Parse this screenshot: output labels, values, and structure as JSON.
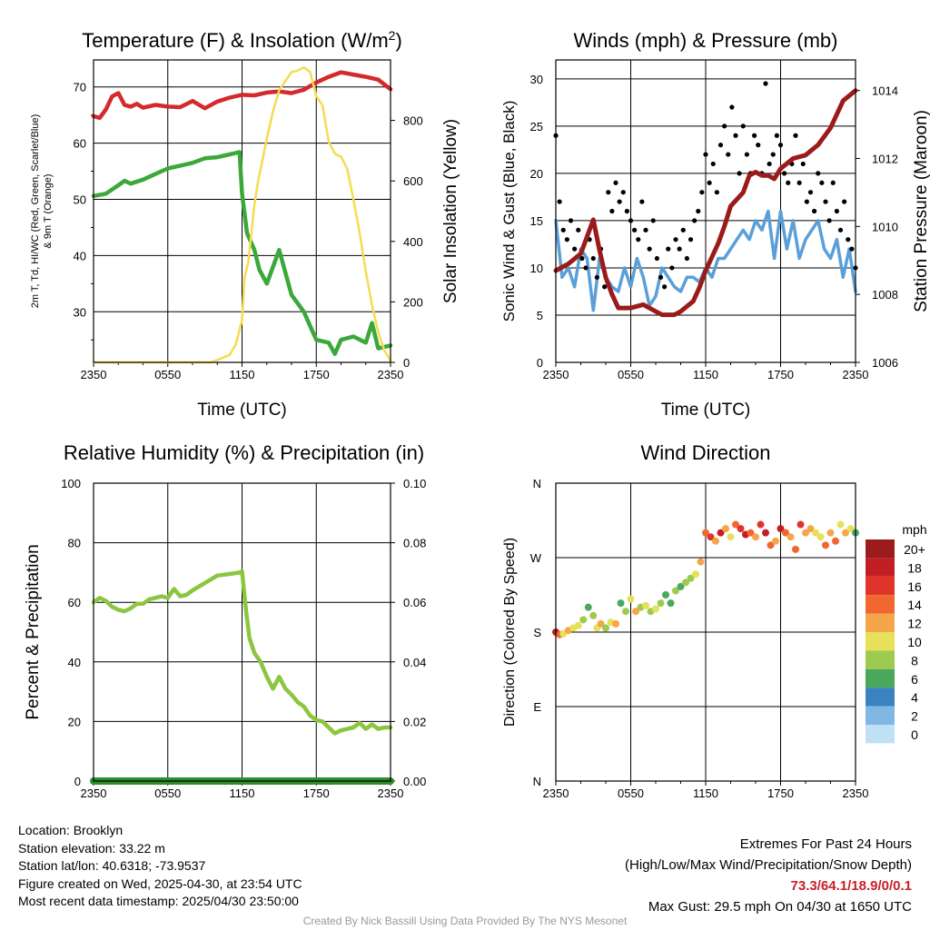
{
  "footer": {
    "location": "Location: Brooklyn",
    "elevation": "Station elevation: 33.22 m",
    "latlon": "Station lat/lon: 40.6318; -73.9537",
    "created": "Figure created on Wed, 2025-04-30, at 23:54 UTC",
    "recent": "Most recent data timestamp: 2025/04/30 23:50:00",
    "extremes_title": "Extremes For Past 24 Hours",
    "extremes_sub": "(High/Low/Max Wind/Precipitation/Snow Depth)",
    "extremes_values": "73.3/64.1/18.9/0/0.1",
    "max_gust": "Max Gust: 29.5 mph On 04/30 at 1650 UTC",
    "credit": "Created By Nick Bassill Using Data Provided By The NYS Mesonet"
  },
  "colors": {
    "temperature": "#d42a2c",
    "dewpoint": "#3aa83a",
    "insolation": "#f5dc50",
    "wind": "#5a9fd8",
    "gust": "#000000",
    "pressure": "#9b1b1b",
    "humidity": "#8cc63f",
    "precip": "#2e8b2e"
  },
  "chart_data": [
    {
      "id": "temp",
      "type": "line",
      "title": "Temperature (F) & Insolation (W/m2)",
      "title_main": "Temperature (F) & Insolation (W/m",
      "title_sup": "2",
      "title_end": ")",
      "xlabel": "Time (UTC)",
      "ylabel_line1": "2m T, Td, HI/WC (Red, Green, Scarlet/Blue)",
      "ylabel_line2": "& 9m T (Orange)",
      "y2label": "Solar Insolation (Yellow)",
      "x_ticks": [
        "2350",
        "0550",
        "1150",
        "1750",
        "2350"
      ],
      "xlim": [
        0,
        24
      ],
      "ylim": [
        21,
        74.8
      ],
      "y_ticks": [
        30,
        40,
        50,
        60,
        70
      ],
      "y2lim": [
        0,
        1000
      ],
      "y2_ticks": [
        0,
        200,
        400,
        600,
        800
      ],
      "series": [
        {
          "name": "2m T",
          "axis": "left",
          "color": "#d42a2c",
          "x": [
            0,
            0.5,
            1,
            1.5,
            2,
            2.5,
            3,
            3.5,
            4,
            5,
            6,
            7,
            8,
            9,
            10,
            11,
            12,
            13,
            14,
            15,
            16,
            17,
            18,
            19,
            20,
            21,
            22,
            23,
            24
          ],
          "y": [
            64.8,
            64.5,
            66.0,
            68.3,
            68.9,
            66.8,
            66.5,
            67.0,
            66.3,
            66.8,
            66.5,
            66.4,
            67.5,
            66.2,
            67.4,
            68.1,
            68.6,
            68.5,
            69.0,
            69.2,
            68.9,
            69.5,
            70.8,
            71.8,
            72.6,
            72.2,
            71.8,
            71.3,
            69.6
          ]
        },
        {
          "name": "2m Td",
          "axis": "left",
          "color": "#3aa83a",
          "x": [
            0,
            1,
            2,
            2.5,
            3,
            4,
            5,
            6,
            7,
            8,
            9,
            10,
            11,
            11.8,
            12,
            12.4,
            13,
            13.4,
            14,
            14.5,
            15,
            15.5,
            16,
            16.5,
            17,
            17.5,
            18,
            19,
            19.5,
            20,
            21,
            22,
            22.5,
            23,
            24
          ],
          "y": [
            50.6,
            51.0,
            52.5,
            53.3,
            52.8,
            53.5,
            54.5,
            55.5,
            56.0,
            56.5,
            57.3,
            57.5,
            58.0,
            58.4,
            51.0,
            44.0,
            41.0,
            37.5,
            35.0,
            38.0,
            41.0,
            37.0,
            33.0,
            31.5,
            30.0,
            27.5,
            25.0,
            24.5,
            22.5,
            25.0,
            25.6,
            24.5,
            28.0,
            23.5,
            24.0
          ]
        },
        {
          "name": "Solar Insolation",
          "axis": "right",
          "color": "#f5dc50",
          "x": [
            0,
            9.5,
            10,
            11,
            11.5,
            12,
            12.2,
            12.5,
            13,
            13.3,
            14,
            14.5,
            15,
            15.5,
            16,
            16.5,
            17,
            17.5,
            18,
            18.5,
            19,
            19.5,
            20,
            20.5,
            21,
            21.5,
            22,
            22.5,
            23,
            23.5,
            24
          ],
          "y": [
            0,
            0,
            8,
            25,
            60,
            140,
            280,
            330,
            520,
            600,
            740,
            830,
            900,
            930,
            960,
            965,
            975,
            960,
            880,
            850,
            730,
            690,
            680,
            640,
            540,
            430,
            300,
            190,
            100,
            40,
            5
          ]
        }
      ]
    },
    {
      "id": "wind",
      "type": "line",
      "title": "Winds (mph) & Pressure (mb)",
      "xlabel": "Time (UTC)",
      "ylabel": "Sonic Wind & Gust (Blue, Black)",
      "y2label": "Station Pressure (Maroon)",
      "x_ticks": [
        "2350",
        "0550",
        "1150",
        "1750",
        "2350"
      ],
      "xlim": [
        0,
        24
      ],
      "ylim": [
        0,
        32
      ],
      "y_ticks": [
        0,
        5,
        10,
        15,
        20,
        25,
        30
      ],
      "y2lim": [
        1006,
        1014.9
      ],
      "y2_ticks": [
        1006,
        1008,
        1010,
        1012,
        1014
      ],
      "series": [
        {
          "name": "Sonic Wind",
          "axis": "left",
          "color": "#5a9fd8",
          "x": [
            0,
            0.5,
            1,
            1.5,
            2,
            2.5,
            3,
            3.5,
            4,
            4.5,
            5,
            5.5,
            6,
            6.5,
            7,
            7.5,
            8,
            8.5,
            9,
            9.5,
            10,
            10.5,
            11,
            11.5,
            12,
            12.5,
            13,
            13.5,
            14,
            14.5,
            15,
            15.5,
            16,
            16.5,
            17,
            17.5,
            18,
            18.5,
            19,
            19.5,
            20,
            20.5,
            21,
            21.5,
            22,
            22.5,
            23,
            23.5,
            24
          ],
          "y": [
            15,
            9,
            10,
            8,
            12,
            11,
            5.5,
            11,
            9,
            8,
            7.5,
            10,
            8,
            11,
            9,
            6,
            7,
            10,
            9,
            8,
            7.5,
            9,
            9,
            8.5,
            10,
            9,
            11,
            11,
            12,
            13,
            14,
            13,
            15,
            14,
            16,
            11,
            16,
            12,
            15,
            11,
            13,
            14,
            15,
            12,
            11,
            13,
            9,
            12,
            7.5
          ]
        },
        {
          "name": "Gust",
          "axis": "left",
          "color": "#000000",
          "type": "scatter",
          "x": [
            0,
            0.3,
            0.6,
            0.9,
            1.2,
            1.5,
            1.8,
            2.1,
            2.4,
            2.7,
            3.0,
            3.3,
            3.6,
            3.9,
            4.2,
            4.5,
            4.8,
            5.1,
            5.4,
            5.7,
            6.0,
            6.3,
            6.6,
            6.9,
            7.2,
            7.5,
            7.8,
            8.1,
            8.4,
            8.7,
            9.0,
            9.3,
            9.6,
            9.9,
            10.2,
            10.5,
            10.8,
            11.1,
            11.4,
            11.7,
            12.0,
            12.3,
            12.6,
            12.9,
            13.2,
            13.5,
            13.8,
            14.1,
            14.4,
            14.7,
            15.0,
            15.3,
            15.6,
            15.9,
            16.2,
            16.5,
            16.8,
            17.1,
            17.4,
            17.7,
            18.0,
            18.3,
            18.6,
            18.9,
            19.2,
            19.5,
            19.8,
            20.1,
            20.4,
            20.7,
            21.0,
            21.3,
            21.6,
            21.9,
            22.2,
            22.5,
            22.8,
            23.1,
            23.4,
            23.7,
            24.0
          ],
          "y": [
            24,
            17,
            14,
            13,
            15,
            12,
            14,
            11,
            10,
            13,
            11,
            9,
            12,
            8,
            18,
            16,
            19,
            17,
            18,
            16,
            15,
            14,
            13,
            17,
            14,
            12,
            15,
            11,
            9,
            8,
            12,
            10,
            13,
            12,
            14,
            11,
            13,
            15,
            16,
            18,
            22,
            19,
            21,
            18,
            23,
            25,
            22,
            27,
            24,
            20,
            25,
            22,
            20,
            24,
            23,
            20,
            29.5,
            21,
            22,
            24,
            23,
            20,
            19,
            21,
            24,
            19,
            21,
            17,
            18,
            16,
            20,
            19,
            17,
            15,
            19,
            16,
            14,
            17,
            13,
            12,
            10
          ]
        },
        {
          "name": "Station Pressure",
          "axis": "right",
          "color": "#9b1b1b",
          "x": [
            0,
            1,
            2,
            3,
            3.5,
            4,
            4.5,
            5,
            6,
            7,
            8,
            8.5,
            9,
            9.5,
            10,
            11,
            11.5,
            12,
            13,
            13.5,
            14,
            15,
            15.5,
            16,
            16.5,
            17,
            17.5,
            18,
            19,
            20,
            21,
            22,
            22.5,
            23,
            24
          ],
          "y": [
            1008.7,
            1008.9,
            1009.2,
            1010.2,
            1009.3,
            1008.5,
            1008.0,
            1007.6,
            1007.6,
            1007.7,
            1007.5,
            1007.4,
            1007.4,
            1007.4,
            1007.5,
            1007.8,
            1008.2,
            1008.7,
            1009.5,
            1010.0,
            1010.6,
            1011.0,
            1011.5,
            1011.6,
            1011.5,
            1011.5,
            1011.4,
            1011.7,
            1012.0,
            1012.1,
            1012.4,
            1012.9,
            1013.3,
            1013.7,
            1014.0
          ]
        }
      ]
    },
    {
      "id": "rh",
      "type": "line",
      "title": "Relative Humidity (%) & Precipitation (in)",
      "ylabel": "Percent & Precipitation",
      "x_ticks": [
        "2350",
        "0550",
        "1150",
        "1750",
        "2350"
      ],
      "xlim": [
        0,
        24
      ],
      "ylim": [
        0,
        100
      ],
      "y_ticks": [
        0,
        20,
        40,
        60,
        80,
        100
      ],
      "y2lim": [
        0,
        0.1
      ],
      "y2_ticks": [
        "0.00",
        "0.02",
        "0.04",
        "0.06",
        "0.08",
        "0.10"
      ],
      "series": [
        {
          "name": "Relative Humidity",
          "axis": "left",
          "color": "#8cc63f",
          "x": [
            0,
            0.5,
            1,
            1.5,
            2,
            2.5,
            3,
            3.5,
            4,
            4.5,
            5,
            5.5,
            6,
            6.5,
            7,
            7.5,
            8,
            9,
            10,
            11,
            11.8,
            12,
            12.3,
            12.6,
            13,
            13.5,
            14,
            14.5,
            15,
            15.5,
            16,
            16.5,
            17,
            17.5,
            18,
            18.5,
            19,
            19.5,
            20,
            20.5,
            21,
            21.5,
            22,
            22.5,
            23,
            23.5,
            24
          ],
          "y": [
            60,
            61.5,
            60.5,
            58.5,
            57.5,
            57,
            58,
            59.5,
            59.5,
            61,
            61.5,
            62,
            61.5,
            64.5,
            62,
            62.5,
            64,
            66.5,
            69,
            69.5,
            70,
            70.5,
            58,
            48,
            43,
            40,
            35,
            31,
            35,
            31,
            29,
            26.5,
            25,
            22,
            20.5,
            20,
            18,
            16,
            17,
            17.5,
            18,
            19.5,
            17.5,
            19,
            17.5,
            18,
            18
          ]
        },
        {
          "name": "Precipitation",
          "axis": "right",
          "color": "#2e8b2e",
          "x": [
            0,
            24
          ],
          "y": [
            0,
            0
          ]
        }
      ]
    },
    {
      "id": "dir",
      "type": "scatter",
      "title": "Wind Direction",
      "ylabel": "Direction (Colored By Speed)",
      "x_ticks": [
        "2350",
        "0550",
        "1150",
        "1750",
        "2350"
      ],
      "xlim": [
        0,
        24
      ],
      "ylim": [
        0,
        360
      ],
      "y_ticks": [
        {
          "v": 0,
          "label": "N"
        },
        {
          "v": 90,
          "label": "E"
        },
        {
          "v": 180,
          "label": "S"
        },
        {
          "v": 270,
          "label": "W"
        },
        {
          "v": 360,
          "label": "N"
        }
      ],
      "colorbar_title": "mph",
      "colorbar_labels": [
        "20+",
        "18",
        "16",
        "14",
        "12",
        "10",
        "8",
        "6",
        "4",
        "2",
        "0"
      ],
      "colorbar_colors": [
        "#9b1c1c",
        "#c21f25",
        "#e0342a",
        "#f06730",
        "#f7a54a",
        "#e6e05a",
        "#9ecb4d",
        "#4aa85c",
        "#3a83c0",
        "#7fb9e3",
        "#c0e0f5"
      ],
      "x": [
        0,
        0.3,
        0.6,
        1,
        1.4,
        1.8,
        2.2,
        2.6,
        3,
        3.3,
        3.6,
        4,
        4.4,
        4.8,
        5.2,
        5.6,
        6,
        6.4,
        6.8,
        7.2,
        7.6,
        8,
        8.4,
        8.8,
        9.2,
        9.6,
        10,
        10.4,
        10.8,
        11.2,
        11.6,
        12,
        12.4,
        12.8,
        13.2,
        13.6,
        14,
        14.4,
        14.8,
        15.2,
        15.6,
        16,
        16.4,
        16.8,
        17.2,
        17.6,
        18,
        18.4,
        18.8,
        19.2,
        19.6,
        20,
        20.4,
        20.8,
        21.2,
        21.6,
        22,
        22.4,
        22.8,
        23.2,
        23.6,
        24
      ],
      "dir": [
        180,
        177,
        178,
        182,
        185,
        188,
        195,
        210,
        200,
        185,
        190,
        185,
        192,
        190,
        215,
        205,
        220,
        205,
        210,
        212,
        205,
        208,
        215,
        225,
        215,
        230,
        235,
        240,
        245,
        250,
        265,
        300,
        295,
        290,
        300,
        305,
        295,
        310,
        305,
        298,
        300,
        295,
        310,
        300,
        285,
        290,
        305,
        300,
        295,
        280,
        310,
        300,
        305,
        300,
        295,
        285,
        300,
        290,
        310,
        300,
        305,
        300
      ],
      "speed": [
        18,
        15,
        10,
        12,
        11,
        10,
        9,
        6,
        8,
        10,
        12,
        9,
        11,
        12,
        6,
        8,
        10,
        12,
        9,
        11,
        8,
        10,
        8,
        7,
        6,
        9,
        7,
        8,
        9,
        10,
        12,
        14,
        16,
        12,
        18,
        13,
        11,
        14,
        16,
        18,
        15,
        13,
        17,
        19,
        14,
        12,
        18,
        14,
        13,
        15,
        16,
        12,
        13,
        11,
        10,
        14,
        12,
        15,
        11,
        12,
        10,
        6
      ]
    }
  ]
}
